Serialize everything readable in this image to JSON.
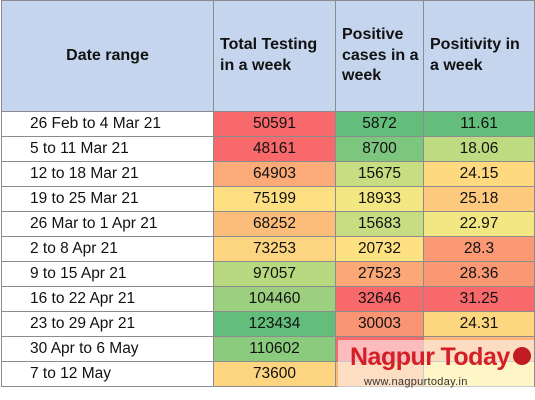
{
  "table": {
    "headers": {
      "date": "Date range",
      "testing": [
        "Total Testing",
        "in a week"
      ],
      "positive": [
        "Positive",
        "cases in a",
        "week"
      ],
      "positivity": [
        "Positivity in",
        "a week"
      ]
    },
    "rows": [
      {
        "date": "26 Feb to 4 Mar 21",
        "testing": "50591",
        "positive": "5872",
        "positivity": "11.61",
        "colors": {
          "testing": "#f8696b",
          "positive": "#63be7b",
          "positivity": "#63be7b"
        }
      },
      {
        "date": "5  to 11 Mar 21",
        "testing": "48161",
        "positive": "8700",
        "positivity": "18.06",
        "colors": {
          "testing": "#f8696b",
          "positive": "#7dc67d",
          "positivity": "#bfdb81"
        }
      },
      {
        "date": "12 to 18 Mar 21",
        "testing": "64903",
        "positive": "15675",
        "positivity": "24.15",
        "colors": {
          "testing": "#fbab77",
          "positive": "#c6dd82",
          "positivity": "#fed97f"
        }
      },
      {
        "date": "19 to 25 Mar 21",
        "testing": "75199",
        "positive": "18933",
        "positivity": "25.18",
        "colors": {
          "testing": "#fee082",
          "positive": "#f3e783",
          "positivity": "#fdca7d"
        }
      },
      {
        "date": "26 Mar to 1 Apr 21",
        "testing": "68252",
        "positive": "15683",
        "positivity": "22.97",
        "colors": {
          "testing": "#fcbd7b",
          "positive": "#c6dd82",
          "positivity": "#f2e783"
        }
      },
      {
        "date": "2 to 8 Apr 21",
        "testing": "73253",
        "positive": "20732",
        "positivity": "28.3",
        "colors": {
          "testing": "#fdd580",
          "positive": "#fee282",
          "positivity": "#fa9973"
        }
      },
      {
        "date": "9 to 15 Apr 21",
        "testing": "97057",
        "positive": "27523",
        "positivity": "28.36",
        "colors": {
          "testing": "#b9d980",
          "positive": "#fba876",
          "positivity": "#fa9873"
        }
      },
      {
        "date": "16 to 22 Apr 21",
        "testing": "104460",
        "positive": "32646",
        "positivity": "31.25",
        "colors": {
          "testing": "#9ccf7f",
          "positive": "#f8696b",
          "positivity": "#f8696b"
        }
      },
      {
        "date": "23 to 29 Apr 21",
        "testing": "123434",
        "positive": "30003",
        "positivity": "24.31",
        "colors": {
          "testing": "#63be7b",
          "positive": "#fa9573",
          "positivity": "#fed680"
        }
      },
      {
        "date": "30 Apr to 6 May",
        "testing": "110602",
        "positive": "",
        "positivity": "",
        "colors": {
          "testing": "#8bcb7e",
          "positive": "#f8696b",
          "positivity": "#fbb479"
        }
      },
      {
        "date": "7 to 12 May",
        "testing": "73600",
        "positive": "",
        "positivity": "",
        "colors": {
          "testing": "#fdd580",
          "positive": "#fcb77a",
          "positivity": "#feeb84"
        }
      }
    ]
  },
  "watermark": {
    "brand_first": "Nagpur",
    "brand_second": "Today",
    "url": "www.nagpurtoday.in",
    "brand_color": "#d41f26"
  }
}
